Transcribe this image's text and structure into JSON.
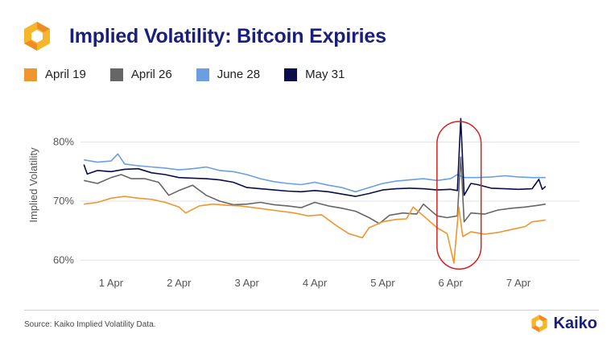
{
  "header": {
    "title": "Implied Volatility: Bitcoin Expiries",
    "logo_icon": "kaiko-logo-icon"
  },
  "legend": [
    {
      "label": "April 19",
      "color": "#f0962f"
    },
    {
      "label": "April 26",
      "color": "#666666"
    },
    {
      "label": "June 28",
      "color": "#6a9fe0"
    },
    {
      "label": "May 31",
      "color": "#0b0d4a"
    }
  ],
  "footer": {
    "source": "Source: Kaiko Implied Volatility Data.",
    "brand": "Kaiko"
  },
  "chart_data": {
    "type": "line",
    "title": "Implied Volatility: Bitcoin Expiries",
    "xlabel": "",
    "ylabel": "Implied Volatility",
    "x_range": [
      0.55,
      7.9
    ],
    "ylim": [
      58,
      85
    ],
    "y_ticks": [
      {
        "value": 60,
        "label": "60%"
      },
      {
        "value": 70,
        "label": "70%"
      },
      {
        "value": 80,
        "label": "80%"
      }
    ],
    "x_ticks": [
      {
        "value": 1,
        "label": "1 Apr"
      },
      {
        "value": 2,
        "label": "2 Apr"
      },
      {
        "value": 3,
        "label": "3 Apr"
      },
      {
        "value": 4,
        "label": "4 Apr"
      },
      {
        "value": 5,
        "label": "5 Apr"
      },
      {
        "value": 6,
        "label": "6 Apr"
      },
      {
        "value": 7,
        "label": "7 Apr"
      }
    ],
    "grid": true,
    "highlight": {
      "x_from": 5.8,
      "x_to": 6.45,
      "y_from": 58.5,
      "y_to": 83.5,
      "color": "#d62020"
    },
    "series": [
      {
        "name": "June 28",
        "color": "#6a9fe0",
        "points": [
          [
            0.6,
            77
          ],
          [
            0.8,
            76.6
          ],
          [
            1,
            76.8
          ],
          [
            1.1,
            78
          ],
          [
            1.2,
            76.3
          ],
          [
            1.4,
            76
          ],
          [
            1.6,
            75.8
          ],
          [
            1.8,
            75.6
          ],
          [
            2,
            75.3
          ],
          [
            2.2,
            75.5
          ],
          [
            2.4,
            75.8
          ],
          [
            2.6,
            75.2
          ],
          [
            2.8,
            75
          ],
          [
            3,
            74.5
          ],
          [
            3.2,
            73.8
          ],
          [
            3.4,
            73.3
          ],
          [
            3.6,
            73
          ],
          [
            3.8,
            72.8
          ],
          [
            4,
            73.2
          ],
          [
            4.2,
            72.7
          ],
          [
            4.4,
            72.3
          ],
          [
            4.6,
            71.6
          ],
          [
            4.8,
            72.3
          ],
          [
            5,
            73
          ],
          [
            5.2,
            73.4
          ],
          [
            5.4,
            73.6
          ],
          [
            5.6,
            73.8
          ],
          [
            5.8,
            73.5
          ],
          [
            6,
            73.8
          ],
          [
            6.1,
            74.5
          ],
          [
            6.2,
            74
          ],
          [
            6.4,
            74
          ],
          [
            6.6,
            74.1
          ],
          [
            6.8,
            74.3
          ],
          [
            7,
            74.1
          ],
          [
            7.2,
            74
          ],
          [
            7.4,
            74
          ]
        ]
      },
      {
        "name": "April 26",
        "color": "#666666",
        "points": [
          [
            0.6,
            73.5
          ],
          [
            0.8,
            73
          ],
          [
            1,
            74
          ],
          [
            1.15,
            74.5
          ],
          [
            1.3,
            73.8
          ],
          [
            1.5,
            73.8
          ],
          [
            1.7,
            73.2
          ],
          [
            1.85,
            71
          ],
          [
            2,
            71.8
          ],
          [
            2.2,
            72.7
          ],
          [
            2.4,
            71
          ],
          [
            2.6,
            70
          ],
          [
            2.8,
            69.4
          ],
          [
            3,
            69.5
          ],
          [
            3.2,
            69.8
          ],
          [
            3.4,
            69.4
          ],
          [
            3.6,
            69.2
          ],
          [
            3.8,
            68.9
          ],
          [
            4,
            69.8
          ],
          [
            4.2,
            69.2
          ],
          [
            4.4,
            68.8
          ],
          [
            4.6,
            68.3
          ],
          [
            4.8,
            67.2
          ],
          [
            4.95,
            66.2
          ],
          [
            5.1,
            67.6
          ],
          [
            5.3,
            68
          ],
          [
            5.5,
            67.8
          ],
          [
            5.6,
            69.5
          ],
          [
            5.8,
            67.5
          ],
          [
            5.95,
            67.2
          ],
          [
            6.1,
            67.5
          ],
          [
            6.15,
            77.5
          ],
          [
            6.2,
            66.5
          ],
          [
            6.3,
            68
          ],
          [
            6.5,
            67.8
          ],
          [
            6.7,
            68.5
          ],
          [
            6.9,
            68.8
          ],
          [
            7.1,
            69
          ],
          [
            7.3,
            69.3
          ],
          [
            7.4,
            69.5
          ]
        ]
      },
      {
        "name": "April 19",
        "color": "#f0962f",
        "points": [
          [
            0.6,
            69.5
          ],
          [
            0.8,
            69.8
          ],
          [
            1,
            70.5
          ],
          [
            1.2,
            70.8
          ],
          [
            1.4,
            70.5
          ],
          [
            1.6,
            70.3
          ],
          [
            1.8,
            69.8
          ],
          [
            2,
            69
          ],
          [
            2.1,
            68
          ],
          [
            2.3,
            69.2
          ],
          [
            2.5,
            69.5
          ],
          [
            2.7,
            69.3
          ],
          [
            2.9,
            69.2
          ],
          [
            3.1,
            68.9
          ],
          [
            3.3,
            68.6
          ],
          [
            3.5,
            68.3
          ],
          [
            3.7,
            68
          ],
          [
            3.9,
            67.5
          ],
          [
            4.1,
            67.7
          ],
          [
            4.3,
            66
          ],
          [
            4.5,
            64.5
          ],
          [
            4.7,
            63.8
          ],
          [
            4.8,
            65.5
          ],
          [
            5,
            66.5
          ],
          [
            5.2,
            66.9
          ],
          [
            5.35,
            67
          ],
          [
            5.45,
            69
          ],
          [
            5.5,
            68.5
          ],
          [
            5.6,
            67.5
          ],
          [
            5.8,
            65.5
          ],
          [
            5.95,
            64.5
          ],
          [
            6.05,
            59.5
          ],
          [
            6.12,
            69
          ],
          [
            6.18,
            64
          ],
          [
            6.3,
            64.8
          ],
          [
            6.5,
            64.4
          ],
          [
            6.7,
            64.7
          ],
          [
            6.9,
            65.2
          ],
          [
            7.1,
            65.7
          ],
          [
            7.2,
            66.5
          ],
          [
            7.4,
            66.8
          ]
        ]
      },
      {
        "name": "May 31",
        "color": "#0b0d4a",
        "points": [
          [
            0.6,
            76.2
          ],
          [
            0.65,
            74.6
          ],
          [
            0.8,
            75.2
          ],
          [
            1,
            75
          ],
          [
            1.2,
            75.4
          ],
          [
            1.4,
            75.5
          ],
          [
            1.6,
            74.8
          ],
          [
            1.8,
            74.5
          ],
          [
            2,
            74
          ],
          [
            2.2,
            73.9
          ],
          [
            2.4,
            73.8
          ],
          [
            2.6,
            73.6
          ],
          [
            2.8,
            73.2
          ],
          [
            3,
            72.3
          ],
          [
            3.2,
            72.1
          ],
          [
            3.4,
            71.9
          ],
          [
            3.6,
            71.7
          ],
          [
            3.8,
            71.6
          ],
          [
            4,
            71.8
          ],
          [
            4.2,
            71.6
          ],
          [
            4.4,
            71.2
          ],
          [
            4.6,
            70.8
          ],
          [
            4.8,
            71.3
          ],
          [
            5,
            71.9
          ],
          [
            5.2,
            72.1
          ],
          [
            5.4,
            72.2
          ],
          [
            5.6,
            72.1
          ],
          [
            5.8,
            71.9
          ],
          [
            6,
            72
          ],
          [
            6.1,
            71.8
          ],
          [
            6.15,
            84
          ],
          [
            6.2,
            71
          ],
          [
            6.3,
            73
          ],
          [
            6.4,
            72.8
          ],
          [
            6.6,
            72.2
          ],
          [
            6.8,
            72.1
          ],
          [
            7,
            72
          ],
          [
            7.2,
            72.1
          ],
          [
            7.3,
            73.7
          ],
          [
            7.35,
            72
          ],
          [
            7.4,
            72.5
          ]
        ]
      }
    ]
  }
}
